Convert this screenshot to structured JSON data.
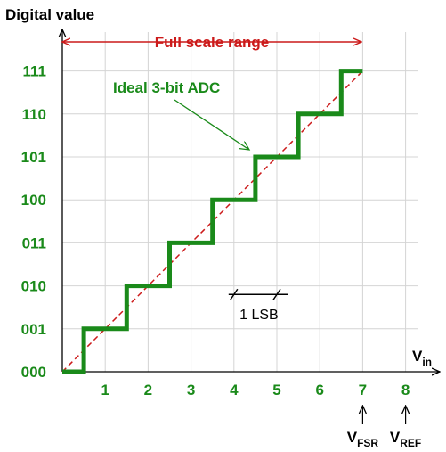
{
  "chart_data": {
    "type": "line",
    "ylabel": "Digital value",
    "xlabel_main": "V",
    "xlabel_sub": "in",
    "x_ticks": [
      "1",
      "2",
      "3",
      "4",
      "5",
      "6",
      "7",
      "8"
    ],
    "y_ticks": [
      "000",
      "001",
      "010",
      "011",
      "100",
      "101",
      "110",
      "111"
    ],
    "xlim": [
      0,
      8
    ],
    "ylim": [
      0,
      7
    ],
    "grid": true,
    "series": [
      {
        "name": "Ideal 3-bit ADC",
        "style": "step",
        "x": [
          0,
          0.5,
          0.5,
          1.5,
          1.5,
          2.5,
          2.5,
          3.5,
          3.5,
          4.5,
          4.5,
          5.5,
          5.5,
          6.5,
          6.5,
          7
        ],
        "y": [
          0,
          0,
          1,
          1,
          2,
          2,
          3,
          3,
          4,
          4,
          5,
          5,
          6,
          6,
          7,
          7
        ]
      },
      {
        "style": "dashed",
        "x": [
          0,
          7
        ],
        "y": [
          0,
          7
        ]
      }
    ],
    "annotations": {
      "range_label": "Full scale range",
      "range_x": [
        0,
        7
      ],
      "lsb_label": "1 LSB",
      "lsb_x": [
        4,
        5
      ],
      "lsb_y": 1.8,
      "vfsr_main": "V",
      "vfsr_sub": "FSR",
      "vfsr_x": 7,
      "vref_main": "V",
      "vref_sub": "REF",
      "vref_x": 8,
      "adc_label": "Ideal 3-bit ADC"
    }
  },
  "colors": {
    "step": "#1a8a1a",
    "ideal_line": "#cc1a1a",
    "range": "#cc1a1a",
    "labels": "#1a8a1a",
    "grid": "#d4d4d4",
    "axis": "#000000"
  }
}
